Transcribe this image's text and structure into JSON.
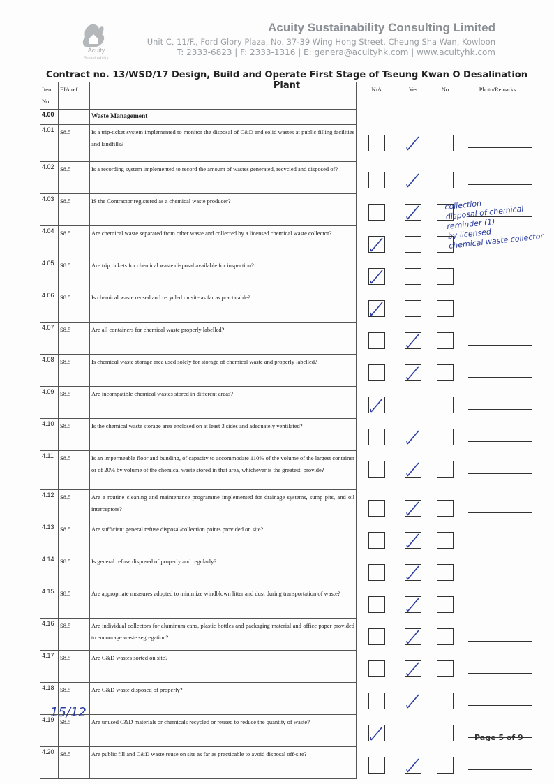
{
  "header": {
    "company": "Acuity Sustainability Consulting Limited",
    "address": "Unit C, 11/F., Ford Glory Plaza, No. 37-39 Wing Hong Street, Cheung Sha Wan, Kowloon",
    "contact": "T: 2333-6823 | F: 2333-1316 | E: genera@acuityhk.com | www.acuityhk.com",
    "logo_name": "Acuity",
    "logo_sub": "Sustainability"
  },
  "contract": "Contract no. 13/WSD/17 Design, Build and Operate First Stage of Tseung Kwan O Desalination Plant",
  "table": {
    "columns": {
      "item": "Item No.",
      "eia": "EIA ref.",
      "na": "N/A",
      "yes": "Yes",
      "no": "No",
      "remarks": "Photo/Remarks"
    },
    "section": {
      "item": "4.00",
      "title": "Waste Management"
    },
    "rows": [
      {
        "item": "4.01",
        "ref": "S8.5",
        "question": "Is a trip-ticket system implemented to monitor the disposal of C&D and solid wastes at public filling facilities and landfills?",
        "checked": "Yes"
      },
      {
        "item": "4.02",
        "ref": "S8.5",
        "question": "Is a recording system implemented to record the amount of wastes generated, recycled and disposed of?",
        "checked": "Yes"
      },
      {
        "item": "4.03",
        "ref": "S8.5",
        "question": "IS the Contractor registered as a chemical waste producer?",
        "checked": "Yes"
      },
      {
        "item": "4.04",
        "ref": "S8.5",
        "question": "Are chemical waste separated from other waste and collected by a licensed chemical waste collector?",
        "checked": "N/A"
      },
      {
        "item": "4.05",
        "ref": "S8.5",
        "question": "Are trip tickets for chemical waste disposal available for inspection?",
        "checked": "N/A"
      },
      {
        "item": "4.06",
        "ref": "S8.5",
        "question": "Is chemical waste reused and recycled on site as far as practicable?",
        "checked": "N/A"
      },
      {
        "item": "4.07",
        "ref": "S8.5",
        "question": "Are all containers for chemical waste properly labelled?",
        "checked": "Yes"
      },
      {
        "item": "4.08",
        "ref": "S8.5",
        "question": "Is chemical waste storage area used solely for storage of chemical waste and properly labelled?",
        "checked": "Yes"
      },
      {
        "item": "4.09",
        "ref": "S8.5",
        "question": "Are incompatible chemical wastes stored in different areas?",
        "checked": "N/A"
      },
      {
        "item": "4.10",
        "ref": "S8.5",
        "question": "Is the chemical waste storage area enclosed on at least 3 sides and adequately ventilated?",
        "checked": "Yes"
      },
      {
        "item": "4.11",
        "ref": "S8.5",
        "question": "Is an impermeable floor and bunding, of capacity to accommodate 110% of the volume of the largest container or of 20% by volume of the chemical waste stored in that area, whichever is the greatest, provide?",
        "checked": "Yes"
      },
      {
        "item": "4.12",
        "ref": "S8.5",
        "question": "Are a routine cleaning and maintenance programme implemented for drainage systems, sump pits, and oil interceptors?",
        "checked": "Yes"
      },
      {
        "item": "4.13",
        "ref": "S8.5",
        "question": "Are sufficient general refuse disposal/collection points provided on site?",
        "checked": "Yes"
      },
      {
        "item": "4.14",
        "ref": "S8.5",
        "question": "Is general refuse disposed of properly and regularly?",
        "checked": "Yes"
      },
      {
        "item": "4.15",
        "ref": "S8.5",
        "question": "Are appropriate measures adopted to minimize windblown litter and dust during transportation of waste?",
        "checked": "Yes"
      },
      {
        "item": "4.16",
        "ref": "S8.5",
        "question": "Are individual collectors for aluminum cans, plastic bottles and packaging material and office paper provided to encourage waste segregation?",
        "checked": "Yes"
      },
      {
        "item": "4.17",
        "ref": "S8.5",
        "question": "Are C&D wastes sorted on site?",
        "checked": "Yes"
      },
      {
        "item": "4.18",
        "ref": "S8.5",
        "question": "Are C&D waste disposed of properly?",
        "checked": "Yes"
      },
      {
        "item": "4.19",
        "ref": "S8.5",
        "question": "Are unused C&D materials or chemicals recycled or reused to reduce the quantity of waste?",
        "checked": "N/A"
      },
      {
        "item": "4.20",
        "ref": "S8.5",
        "question": "Are public fill and C&D waste reuse on site as far as practicable to avoid disposal off-site?",
        "checked": "Yes"
      }
    ]
  },
  "handwritten": {
    "note": [
      "collection",
      "disposal of chemical",
      "reminder (1)",
      "by licensed",
      "chemical waste collector"
    ],
    "date": "15/12"
  },
  "footer": {
    "page": "Page 5 of 9"
  }
}
